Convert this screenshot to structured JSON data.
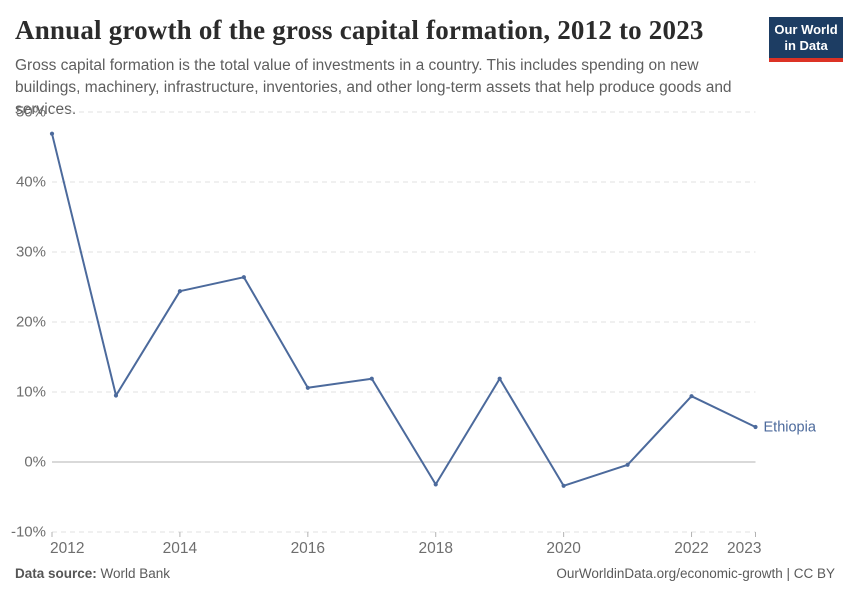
{
  "header": {
    "title": "Annual growth of the gross capital formation, 2012 to 2023",
    "subtitle": "Gross capital formation is the total value of investments in a country. This includes spending on new buildings, machinery, infrastructure, inventories, and other long-term assets that help produce goods and services.",
    "logo": {
      "line1": "Our World",
      "line2": "in Data"
    }
  },
  "chart_data": {
    "type": "line",
    "title": "Annual growth of the gross capital formation, 2012 to 2023",
    "x": [
      2012,
      2013,
      2014,
      2015,
      2016,
      2017,
      2018,
      2019,
      2020,
      2021,
      2022,
      2023
    ],
    "series": [
      {
        "name": "Ethiopia",
        "color": "#4c6a9c",
        "values": [
          46.9,
          9.5,
          24.4,
          26.4,
          10.6,
          11.9,
          -3.2,
          11.9,
          -3.4,
          -0.4,
          9.4,
          5.0
        ]
      }
    ],
    "ylim": [
      -10,
      50
    ],
    "y_ticks": [
      50,
      40,
      30,
      20,
      10,
      0,
      -10
    ],
    "y_tick_suffix": "%",
    "x_ticks": [
      2012,
      2014,
      2016,
      2018,
      2020,
      2022,
      2023
    ],
    "grid": "horizontal-dashed",
    "zero_line": true,
    "legend": "line-end-label",
    "colors": {
      "grid": "#e2e2e2",
      "zero_line": "#c2c2c2",
      "axis_text": "#6e6e6e",
      "tick_mark": "#b3b3b3"
    }
  },
  "footer": {
    "source_label": "Data source:",
    "source_value": " World Bank",
    "attribution": "OurWorldinData.org/economic-growth | CC BY"
  }
}
